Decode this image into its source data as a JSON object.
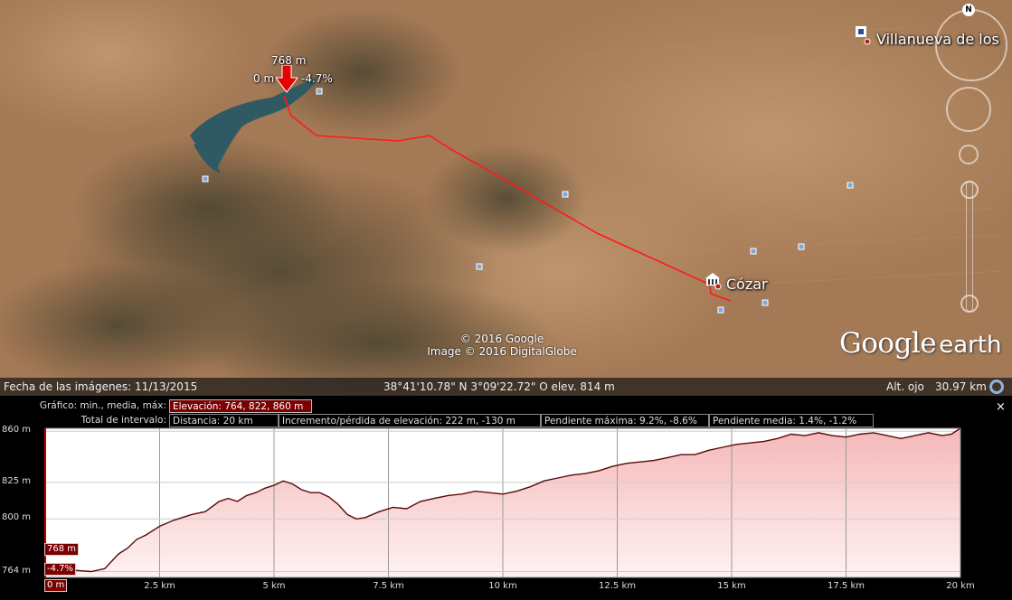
{
  "map": {
    "place_labels": {
      "villanueva": "Villanueva de los",
      "cozar": "Cózar"
    },
    "cursor": {
      "elevation": "768 m",
      "distance": "0 m",
      "slope": "-4.7%"
    },
    "copyright_line1": "© 2016 Google",
    "copyright_line2": "Image © 2016 DigitalGlobe",
    "logo_google": "Google",
    "logo_earth": "earth",
    "compass_north": "N",
    "route_color": "#ff1a1a"
  },
  "statusbar": {
    "imagery_date": "Fecha de las imágenes: 11/13/2015",
    "coordinates": "38°41'10.78\" N   3°09'22.72\" O elev.   814 m",
    "eye_alt_label": "Alt. ojo",
    "eye_alt_value": "30.97 km"
  },
  "profile": {
    "graph_label": "Gráfico: min., media, máx:",
    "elevation_stats": "Elevación: 764, 822, 860 m",
    "interval_label": "Total de intervalo:",
    "distance": "Distancia: 20 km",
    "gain_loss": "Incremento/pérdida de elevación: 222 m, -130 m",
    "max_slope": "Pendiente máxima: 9.2%, -8.6%",
    "avg_slope": "Pendiente media: 1.4%, -1.2%",
    "close": "×",
    "marker_elevation": "768 m",
    "marker_slope": "-4.7%",
    "marker_distance": "0 m"
  },
  "chart_data": {
    "type": "area",
    "title": "",
    "xlabel": "",
    "ylabel": "",
    "x_unit": "km",
    "y_unit": "m",
    "xlim": [
      0,
      20
    ],
    "ylim": [
      760,
      862
    ],
    "x_ticks": [
      "2.5 km",
      "5 km",
      "7.5 km",
      "10 km",
      "12.5 km",
      "15 km",
      "17.5 km",
      "20 km"
    ],
    "x_tick_values": [
      2.5,
      5,
      7.5,
      10,
      12.5,
      15,
      17.5,
      20
    ],
    "y_ticks": [
      "860 m",
      "825 m",
      "800 m",
      "764 m"
    ],
    "y_tick_values": [
      860,
      825,
      800,
      764
    ],
    "grid": true,
    "series": [
      {
        "x": [
          0,
          0.3,
          0.6,
          1.0,
          1.3,
          1.6,
          1.8,
          2.0,
          2.2,
          2.5,
          2.8,
          3.0,
          3.2,
          3.5,
          3.8,
          4.0,
          4.2,
          4.4,
          4.6,
          4.8,
          5.0,
          5.2,
          5.4,
          5.6,
          5.8,
          6.0,
          6.2,
          6.4,
          6.6,
          6.8,
          7.0,
          7.3,
          7.6,
          7.9,
          8.2,
          8.5,
          8.8,
          9.1,
          9.4,
          9.7,
          10.0,
          10.3,
          10.6,
          10.9,
          11.2,
          11.5,
          11.8,
          12.1,
          12.4,
          12.7,
          13.0,
          13.3,
          13.6,
          13.9,
          14.2,
          14.5,
          14.8,
          15.1,
          15.4,
          15.7,
          16.0,
          16.3,
          16.6,
          16.9,
          17.2,
          17.5,
          17.8,
          18.1,
          18.4,
          18.7,
          19.0,
          19.3,
          19.6,
          19.8,
          20.0
        ],
        "y": [
          768,
          764,
          765,
          764,
          766,
          776,
          780,
          786,
          789,
          795,
          799,
          801,
          803,
          805,
          812,
          814,
          812,
          816,
          818,
          821,
          823,
          826,
          824,
          820,
          818,
          818,
          815,
          810,
          803,
          800,
          801,
          805,
          808,
          807,
          812,
          814,
          816,
          817,
          819,
          818,
          817,
          819,
          822,
          826,
          828,
          830,
          831,
          833,
          836,
          838,
          839,
          840,
          842,
          844,
          844,
          847,
          849,
          851,
          852,
          853,
          855,
          858,
          857,
          859,
          857,
          856,
          858,
          859,
          857,
          855,
          857,
          859,
          857,
          858,
          862
        ]
      }
    ]
  }
}
